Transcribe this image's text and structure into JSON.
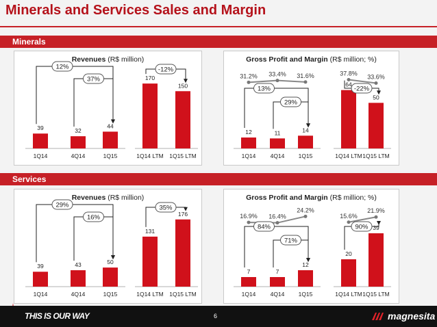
{
  "page": {
    "title": "Minerals and Services Sales and Margin",
    "page_number": "6",
    "tagline": "THIS IS OUR WAY",
    "logo_text": "magnesita"
  },
  "sections": {
    "minerals": "Minerals",
    "services": "Services"
  },
  "panels": {
    "m_rev": {
      "title_bold": "Revenues",
      "title_rest": " (R$ million)"
    },
    "m_gp": {
      "title_bold": "Gross Profit and Margin",
      "title_rest": " (R$ million; %)"
    },
    "s_rev": {
      "title_bold": "Revenues",
      "title_rest": " (R$ million)"
    },
    "s_gp": {
      "title_bold": "Gross Profit and Margin",
      "title_rest": " (R$ million; %)"
    }
  },
  "colors": {
    "bar": "#d0111b",
    "accent": "#c62026",
    "margin_line": "#888888"
  },
  "chart_data": [
    {
      "id": "m_rev",
      "type": "bar",
      "ylim": [
        0,
        215
      ],
      "groups": [
        {
          "categories": [
            "1Q14",
            "4Q14",
            "1Q15"
          ],
          "values": [
            39,
            32,
            44
          ],
          "labels": [
            "39",
            "32",
            "44"
          ]
        },
        {
          "categories": [
            "1Q14 LTM",
            "1Q15 LTM"
          ],
          "values": [
            170,
            150
          ],
          "labels": [
            "170",
            "150"
          ]
        }
      ],
      "annotations": [
        {
          "text": "12%",
          "from": [
            0,
            0
          ],
          "to": [
            0,
            2
          ]
        },
        {
          "text": "37%",
          "from": [
            0,
            1
          ],
          "to": [
            0,
            2
          ]
        },
        {
          "text": "-12%",
          "from": [
            1,
            0
          ],
          "to": [
            1,
            1
          ]
        }
      ]
    },
    {
      "id": "m_gp",
      "type": "bar+line",
      "ylim": [
        0,
        90
      ],
      "groups": [
        {
          "categories": [
            "1Q14",
            "4Q14",
            "1Q15"
          ],
          "values": [
            12,
            11,
            14
          ],
          "labels": [
            "12",
            "11",
            "14"
          ],
          "margins": [
            31.2,
            33.4,
            31.6
          ],
          "margin_labels": [
            "31.2%",
            "33.4%",
            "31.6%"
          ]
        },
        {
          "categories": [
            "1Q14 LTM",
            "1Q15 LTM"
          ],
          "values": [
            64,
            50
          ],
          "labels": [
            "64",
            "50"
          ],
          "margins": [
            37.8,
            33.6
          ],
          "margin_labels": [
            "37.8%",
            "33.6%"
          ]
        }
      ],
      "annotations": [
        {
          "text": "13%",
          "from": [
            0,
            0
          ],
          "to": [
            0,
            2
          ]
        },
        {
          "text": "29%",
          "from": [
            0,
            1
          ],
          "to": [
            0,
            2
          ]
        },
        {
          "text": "-22%",
          "from": [
            1,
            0
          ],
          "to": [
            1,
            1
          ]
        }
      ]
    },
    {
      "id": "s_rev",
      "type": "bar",
      "ylim": [
        0,
        215
      ],
      "groups": [
        {
          "categories": [
            "1Q14",
            "4Q14",
            "1Q15"
          ],
          "values": [
            39,
            43,
            50
          ],
          "labels": [
            "39",
            "43",
            "50"
          ]
        },
        {
          "categories": [
            "1Q14 LTM",
            "1Q15 LTM"
          ],
          "values": [
            131,
            176
          ],
          "labels": [
            "131",
            "176"
          ]
        }
      ],
      "annotations": [
        {
          "text": "29%",
          "from": [
            0,
            0
          ],
          "to": [
            0,
            2
          ]
        },
        {
          "text": "16%",
          "from": [
            0,
            1
          ],
          "to": [
            0,
            2
          ]
        },
        {
          "text": "35%",
          "from": [
            1,
            0
          ],
          "to": [
            1,
            1
          ]
        }
      ]
    },
    {
      "id": "s_gp",
      "type": "bar+line",
      "ylim": [
        0,
        60
      ],
      "groups": [
        {
          "categories": [
            "1Q14",
            "4Q14",
            "1Q15"
          ],
          "values": [
            7,
            7,
            12
          ],
          "labels": [
            "7",
            "7",
            "12"
          ],
          "margins": [
            16.9,
            16.4,
            24.2
          ],
          "margin_labels": [
            "16.9%",
            "16.4%",
            "24.2%"
          ]
        },
        {
          "categories": [
            "1Q14 LTM",
            "1Q15 LTM"
          ],
          "values": [
            20,
            39
          ],
          "labels": [
            "20",
            "39"
          ],
          "margins": [
            15.6,
            21.9
          ],
          "margin_labels": [
            "15.6%",
            "21.9%"
          ]
        }
      ],
      "annotations": [
        {
          "text": "84%",
          "from": [
            0,
            0
          ],
          "to": [
            0,
            2
          ]
        },
        {
          "text": "71%",
          "from": [
            0,
            1
          ],
          "to": [
            0,
            2
          ]
        },
        {
          "text": "90%",
          "from": [
            1,
            0
          ],
          "to": [
            1,
            1
          ]
        }
      ]
    }
  ]
}
